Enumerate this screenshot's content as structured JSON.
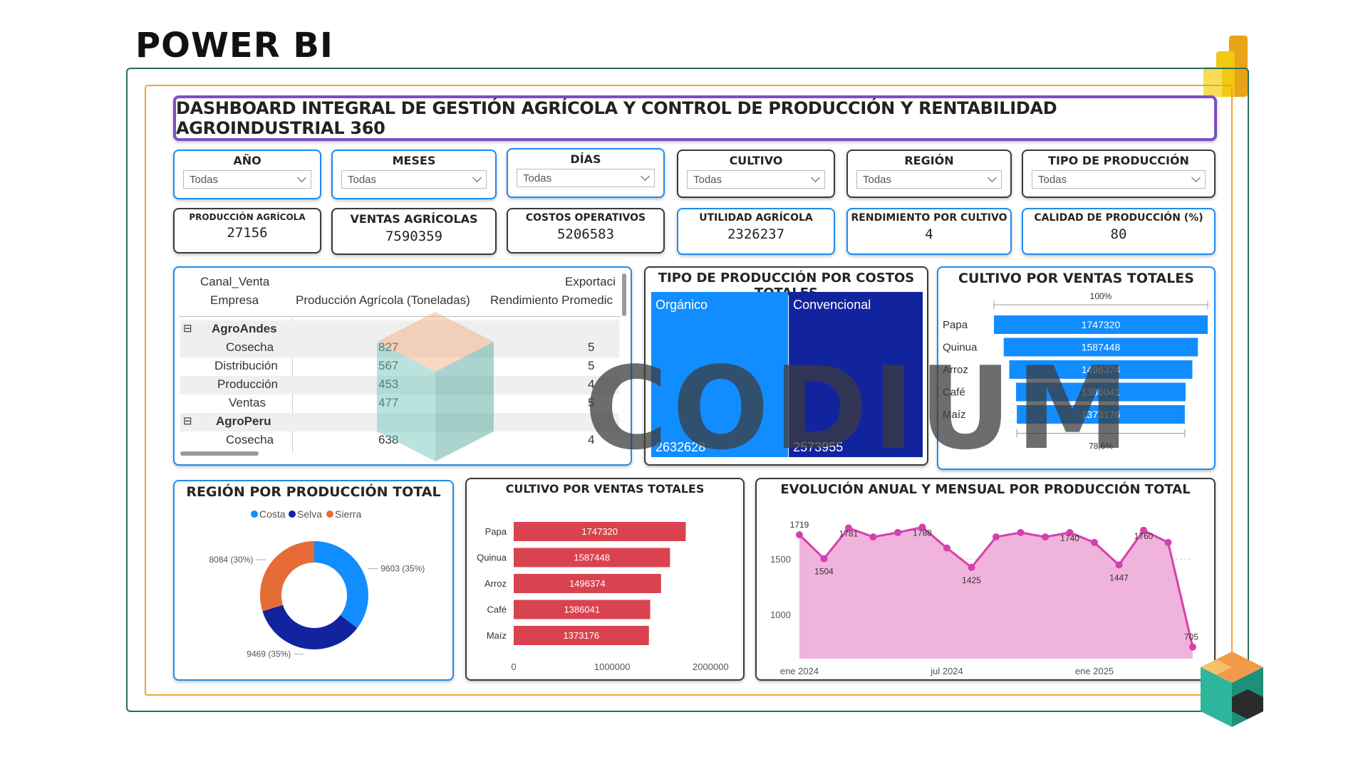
{
  "heading": "POWER BI",
  "dashboard_title": "DASHBOARD INTEGRAL DE GESTIÓN AGRÍCOLA Y CONTROL DE PRODUCCIÓN Y RENTABILIDAD AGROINDUSTRIAL 360",
  "slicers": [
    {
      "label": "AÑO",
      "value": "Todas"
    },
    {
      "label": "MESES",
      "value": "Todas"
    },
    {
      "label": "DÍAS",
      "value": "Todas"
    },
    {
      "label": "CULTIVO",
      "value": "Todas"
    },
    {
      "label": "REGIÓN",
      "value": "Todas"
    },
    {
      "label": "TIPO DE PRODUCCIÓN",
      "value": "Todas"
    }
  ],
  "kpis": [
    {
      "label": "PRODUCCIÓN AGRÍCOLA",
      "value": "27156"
    },
    {
      "label": "VENTAS AGRÍCOLAS",
      "value": "7590359"
    },
    {
      "label": "COSTOS OPERATIVOS",
      "value": "5206583"
    },
    {
      "label": "UTILIDAD AGRÍCOLA",
      "value": "2326237"
    },
    {
      "label": "RENDIMIENTO POR CULTIVO",
      "value": "4"
    },
    {
      "label": "CALIDAD DE PRODUCCIÓN (%)",
      "value": "80"
    }
  ],
  "matrix": {
    "header_row1_left": "Canal_Venta",
    "header_row1_right": "Exportaci",
    "header_row2_col1": "Empresa",
    "header_row2_col2": "Producción Agrícola (Toneladas)",
    "header_row2_col3": "Rendimiento Promedic",
    "groups": [
      {
        "name": "AgroAndes",
        "expand": "⊟",
        "rows": [
          {
            "label": "Cosecha",
            "prod": "827",
            "rend": "5"
          },
          {
            "label": "Distribución",
            "prod": "567",
            "rend": "5"
          },
          {
            "label": "Producción",
            "prod": "453",
            "rend": "4"
          },
          {
            "label": "Ventas",
            "prod": "477",
            "rend": "5"
          }
        ]
      },
      {
        "name": "AgroPeru",
        "expand": "⊟",
        "rows": [
          {
            "label": "Cosecha",
            "prod": "638",
            "rend": "4"
          }
        ]
      }
    ]
  },
  "treemap": {
    "title": "TIPO DE PRODUCCIÓN POR COSTOS TOTALES",
    "items": [
      {
        "name": "Orgánico",
        "value": "2632628",
        "color": "#118dff"
      },
      {
        "name": "Convencional",
        "value": "2573955",
        "color": "#12239e"
      }
    ]
  },
  "funnel": {
    "title": "CULTIVO POR VENTAS TOTALES",
    "top_label": "100%",
    "bottom_label": "78,6%",
    "color": "#118dff"
  },
  "donut": {
    "title": "REGIÓN POR PRODUCCIÓN TOTAL",
    "legend": [
      {
        "name": "Costa",
        "color": "#118dff"
      },
      {
        "name": "Selva",
        "color": "#12239e"
      },
      {
        "name": "Sierra",
        "color": "#e66c37"
      }
    ]
  },
  "bar": {
    "title": "CULTIVO POR VENTAS TOTALES",
    "color": "#d9434f",
    "x_ticks": [
      "0",
      "1000000",
      "2000000"
    ]
  },
  "area": {
    "title": "EVOLUCIÓN ANUAL Y MENSUAL POR PRODUCCIÓN TOTAL",
    "color": "#d63fae",
    "fill": "#f0b3dc",
    "y_ticks": [
      "1500",
      "1000"
    ],
    "x_ticks": [
      "ene 2024",
      "jul 2024",
      "ene 2025"
    ]
  },
  "watermark": "CODIUM",
  "chart_data": [
    {
      "type": "treemap",
      "title": "TIPO DE PRODUCCIÓN POR COSTOS TOTALES",
      "categories": [
        "Orgánico",
        "Convencional"
      ],
      "values": [
        2632628,
        2573955
      ]
    },
    {
      "type": "funnel",
      "title": "CULTIVO POR VENTAS TOTALES",
      "categories": [
        "Papa",
        "Quinua",
        "Arroz",
        "Café",
        "Maíz"
      ],
      "values": [
        1747320,
        1587448,
        1496374,
        1386041,
        1373176
      ]
    },
    {
      "type": "pie",
      "title": "REGIÓN POR PRODUCCIÓN TOTAL",
      "categories": [
        "Costa",
        "Selva",
        "Sierra"
      ],
      "values": [
        9603,
        9469,
        8084
      ],
      "labels": [
        "9603 (35%)",
        "9469 (35%)",
        "8084 (30%)"
      ]
    },
    {
      "type": "bar",
      "title": "CULTIVO POR VENTAS TOTALES",
      "categories": [
        "Papa",
        "Quinua",
        "Arroz",
        "Café",
        "Maíz"
      ],
      "values": [
        1747320,
        1587448,
        1496374,
        1386041,
        1373176
      ],
      "xlim": [
        0,
        2200000
      ]
    },
    {
      "type": "area",
      "title": "EVOLUCIÓN ANUAL Y MENSUAL POR PRODUCCIÓN TOTAL",
      "x": [
        "2024-01",
        "2024-02",
        "2024-03",
        "2024-04",
        "2024-05",
        "2024-06",
        "2024-07",
        "2024-08",
        "2024-09",
        "2024-10",
        "2024-11",
        "2024-12",
        "2025-01",
        "2025-02",
        "2025-03",
        "2025-04",
        "2025-05"
      ],
      "values": [
        1719,
        1504,
        1781,
        1700,
        1740,
        1788,
        1600,
        1425,
        1700,
        1740,
        1700,
        1740,
        1650,
        1447,
        1760,
        1650,
        705
      ],
      "point_labels": [
        "1719",
        "1504",
        "1781",
        "",
        "",
        "1788",
        "",
        "1425",
        "",
        "",
        "",
        "1740",
        "",
        "1447",
        "1760",
        "",
        "705"
      ],
      "ylim": [
        600,
        1900
      ]
    }
  ]
}
